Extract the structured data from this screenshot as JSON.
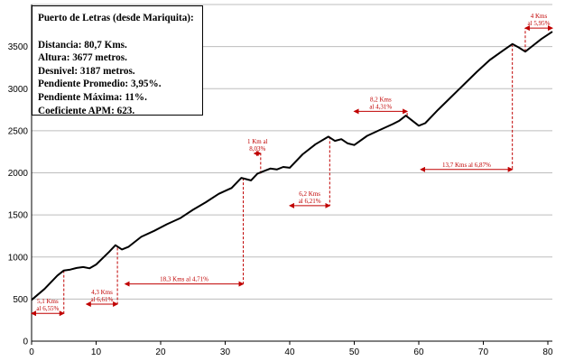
{
  "chart_data": {
    "type": "line",
    "title": "Puerto de Letras (desde Mariquita):",
    "stats": [
      "Distancia: 80,7 Kms.",
      "Altura: 3677 metros.",
      "Desnivel: 3187 metros.",
      "Pendiente Promedio: 3,95%.",
      "Pendiente Máxima: 11%.",
      "Coeficiente APM: 623."
    ],
    "xlim": [
      0,
      80.7
    ],
    "ylim": [
      0,
      4000
    ],
    "xticks": [
      "0",
      "10",
      "20",
      "30",
      "40",
      "50",
      "60",
      "70",
      "80"
    ],
    "yticks": [
      "0",
      "500",
      "1000",
      "1500",
      "2000",
      "2500",
      "3000",
      "3500"
    ],
    "grid": true,
    "series": [
      {
        "values": [
          [
            0,
            490
          ],
          [
            2,
            620
          ],
          [
            4,
            780
          ],
          [
            5,
            840
          ],
          [
            6,
            850
          ],
          [
            7,
            870
          ],
          [
            8,
            880
          ],
          [
            9,
            865
          ],
          [
            10,
            910
          ],
          [
            12,
            1060
          ],
          [
            13,
            1140
          ],
          [
            14,
            1090
          ],
          [
            15,
            1120
          ],
          [
            17,
            1240
          ],
          [
            19,
            1310
          ],
          [
            21,
            1390
          ],
          [
            23,
            1460
          ],
          [
            25,
            1560
          ],
          [
            27,
            1650
          ],
          [
            29,
            1750
          ],
          [
            31,
            1820
          ],
          [
            32.5,
            1940
          ],
          [
            34,
            1910
          ],
          [
            35,
            1990
          ],
          [
            36,
            2020
          ],
          [
            37,
            2050
          ],
          [
            38,
            2040
          ],
          [
            39,
            2070
          ],
          [
            40,
            2060
          ],
          [
            42,
            2220
          ],
          [
            44,
            2340
          ],
          [
            46,
            2430
          ],
          [
            47,
            2380
          ],
          [
            48,
            2400
          ],
          [
            49,
            2350
          ],
          [
            50,
            2330
          ],
          [
            52,
            2440
          ],
          [
            54,
            2510
          ],
          [
            56,
            2580
          ],
          [
            57,
            2620
          ],
          [
            58,
            2680
          ],
          [
            59,
            2620
          ],
          [
            60,
            2560
          ],
          [
            61,
            2590
          ],
          [
            63,
            2750
          ],
          [
            65,
            2900
          ],
          [
            67,
            3050
          ],
          [
            69,
            3200
          ],
          [
            71,
            3340
          ],
          [
            73,
            3450
          ],
          [
            74.5,
            3530
          ],
          [
            75.5,
            3490
          ],
          [
            76.5,
            3440
          ],
          [
            77.5,
            3500
          ],
          [
            79,
            3590
          ],
          [
            80.7,
            3677
          ]
        ]
      }
    ],
    "annotations": [
      {
        "lines": [
          "5,1 Kms",
          "al 6,55%"
        ],
        "x_from": 0,
        "x_to": 5,
        "arrow_y": 330,
        "drop_x": 5,
        "drop_y": 840
      },
      {
        "lines": [
          "4,3 Kms",
          "al 6,61%"
        ],
        "x_from": 8.5,
        "x_to": 13.3,
        "arrow_y": 440,
        "drop_x": 13.3,
        "drop_y": 1110
      },
      {
        "lines": [
          "18,3 Kms al 4,71%"
        ],
        "x_from": 14.5,
        "x_to": 32.8,
        "arrow_y": 680,
        "drop_x": 32.8,
        "drop_y": 1940
      },
      {
        "lines": [
          "1 Km al",
          "8,03%"
        ],
        "x_from": 34.5,
        "x_to": 35.5,
        "arrow_y": 2230,
        "drop_x": 35.5,
        "drop_y": 1990
      },
      {
        "lines": [
          "6,2 Kms",
          "al 6,21%"
        ],
        "x_from": 40,
        "x_to": 46.2,
        "arrow_y": 1610,
        "drop_x": 46.2,
        "drop_y": 2430
      },
      {
        "lines": [
          "8,2 Kms",
          "al 4,31%"
        ],
        "x_from": 50,
        "x_to": 58.2,
        "arrow_y": 2730,
        "drop_x": 58.2,
        "drop_y": 2680
      },
      {
        "lines": [
          "13,7 Kms al 6,87%"
        ],
        "x_from": 60.3,
        "x_to": 74.5,
        "arrow_y": 2040,
        "drop_x": 74.5,
        "drop_y": 3530
      },
      {
        "lines": [
          "4 Kms",
          "al 5,95%"
        ],
        "x_from": 76.5,
        "x_to": 80.7,
        "arrow_y": 3720,
        "drop_x": 76.5,
        "drop_y": 3440
      }
    ]
  }
}
